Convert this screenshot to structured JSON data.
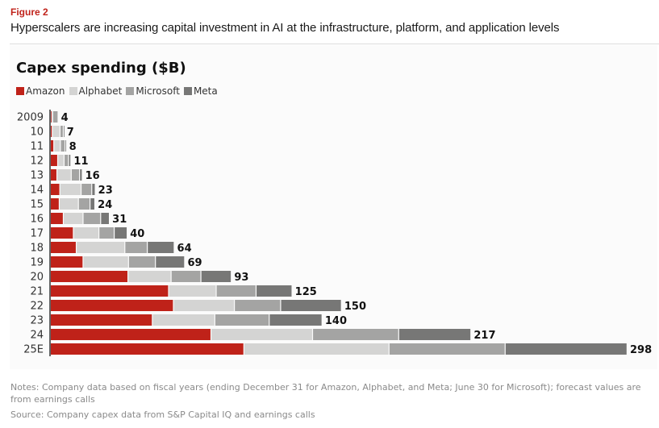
{
  "figure": {
    "label": "Figure 2",
    "title": "Hyperscalers are increasing capital investment in AI at the infrastructure, platform, and application levels"
  },
  "footer": {
    "notes": "Notes: Company data based on fiscal years (ending December 31 for Amazon, Alphabet, and Meta; June 30 for Microsoft); forecast values are from earnings calls",
    "source": "Source: Company capex data from S&P Capital IQ and earnings calls"
  },
  "chart_data": {
    "type": "bar",
    "orientation": "horizontal",
    "stacked": true,
    "title": "Capex spending ($B)",
    "xlabel": "",
    "ylabel": "",
    "xlim": [
      0,
      298
    ],
    "grid": false,
    "legend_position": "top-left",
    "categories": [
      "2009",
      "10",
      "11",
      "12",
      "13",
      "14",
      "15",
      "16",
      "17",
      "18",
      "19",
      "20",
      "21",
      "22",
      "23",
      "24",
      "25E"
    ],
    "series": [
      {
        "name": "Amazon",
        "color": "#bf2219",
        "values": [
          0.4,
          1.0,
          1.8,
          3.8,
          3.4,
          4.9,
          4.6,
          6.7,
          11.9,
          13.4,
          16.9,
          40.1,
          61.1,
          63.6,
          52.7,
          83.0,
          100.0
        ]
      },
      {
        "name": "Alphabet",
        "color": "#d4d4d3",
        "values": [
          0.8,
          4.0,
          3.4,
          3.3,
          7.4,
          11.0,
          9.9,
          10.2,
          13.2,
          25.1,
          23.5,
          22.3,
          24.6,
          31.5,
          32.3,
          52.5,
          75.0
        ]
      },
      {
        "name": "Microsoft",
        "color": "#a4a4a3",
        "values": [
          2.8,
          1.7,
          2.4,
          2.3,
          4.3,
          5.5,
          6.0,
          9.1,
          7.9,
          11.6,
          13.9,
          15.4,
          20.6,
          23.9,
          28.1,
          44.5,
          60.0
        ]
      },
      {
        "name": "Meta",
        "color": "#777776",
        "values": [
          0.0,
          0.3,
          0.6,
          1.2,
          1.4,
          1.8,
          2.5,
          4.5,
          6.7,
          13.9,
          15.1,
          15.7,
          18.6,
          31.4,
          27.3,
          37.3,
          63.0
        ]
      }
    ],
    "totals": [
      "4",
      "7",
      "8",
      "11",
      "16",
      "23",
      "24",
      "31",
      "40",
      "64",
      "69",
      "93",
      "125",
      "150",
      "140",
      "217",
      "298"
    ]
  }
}
